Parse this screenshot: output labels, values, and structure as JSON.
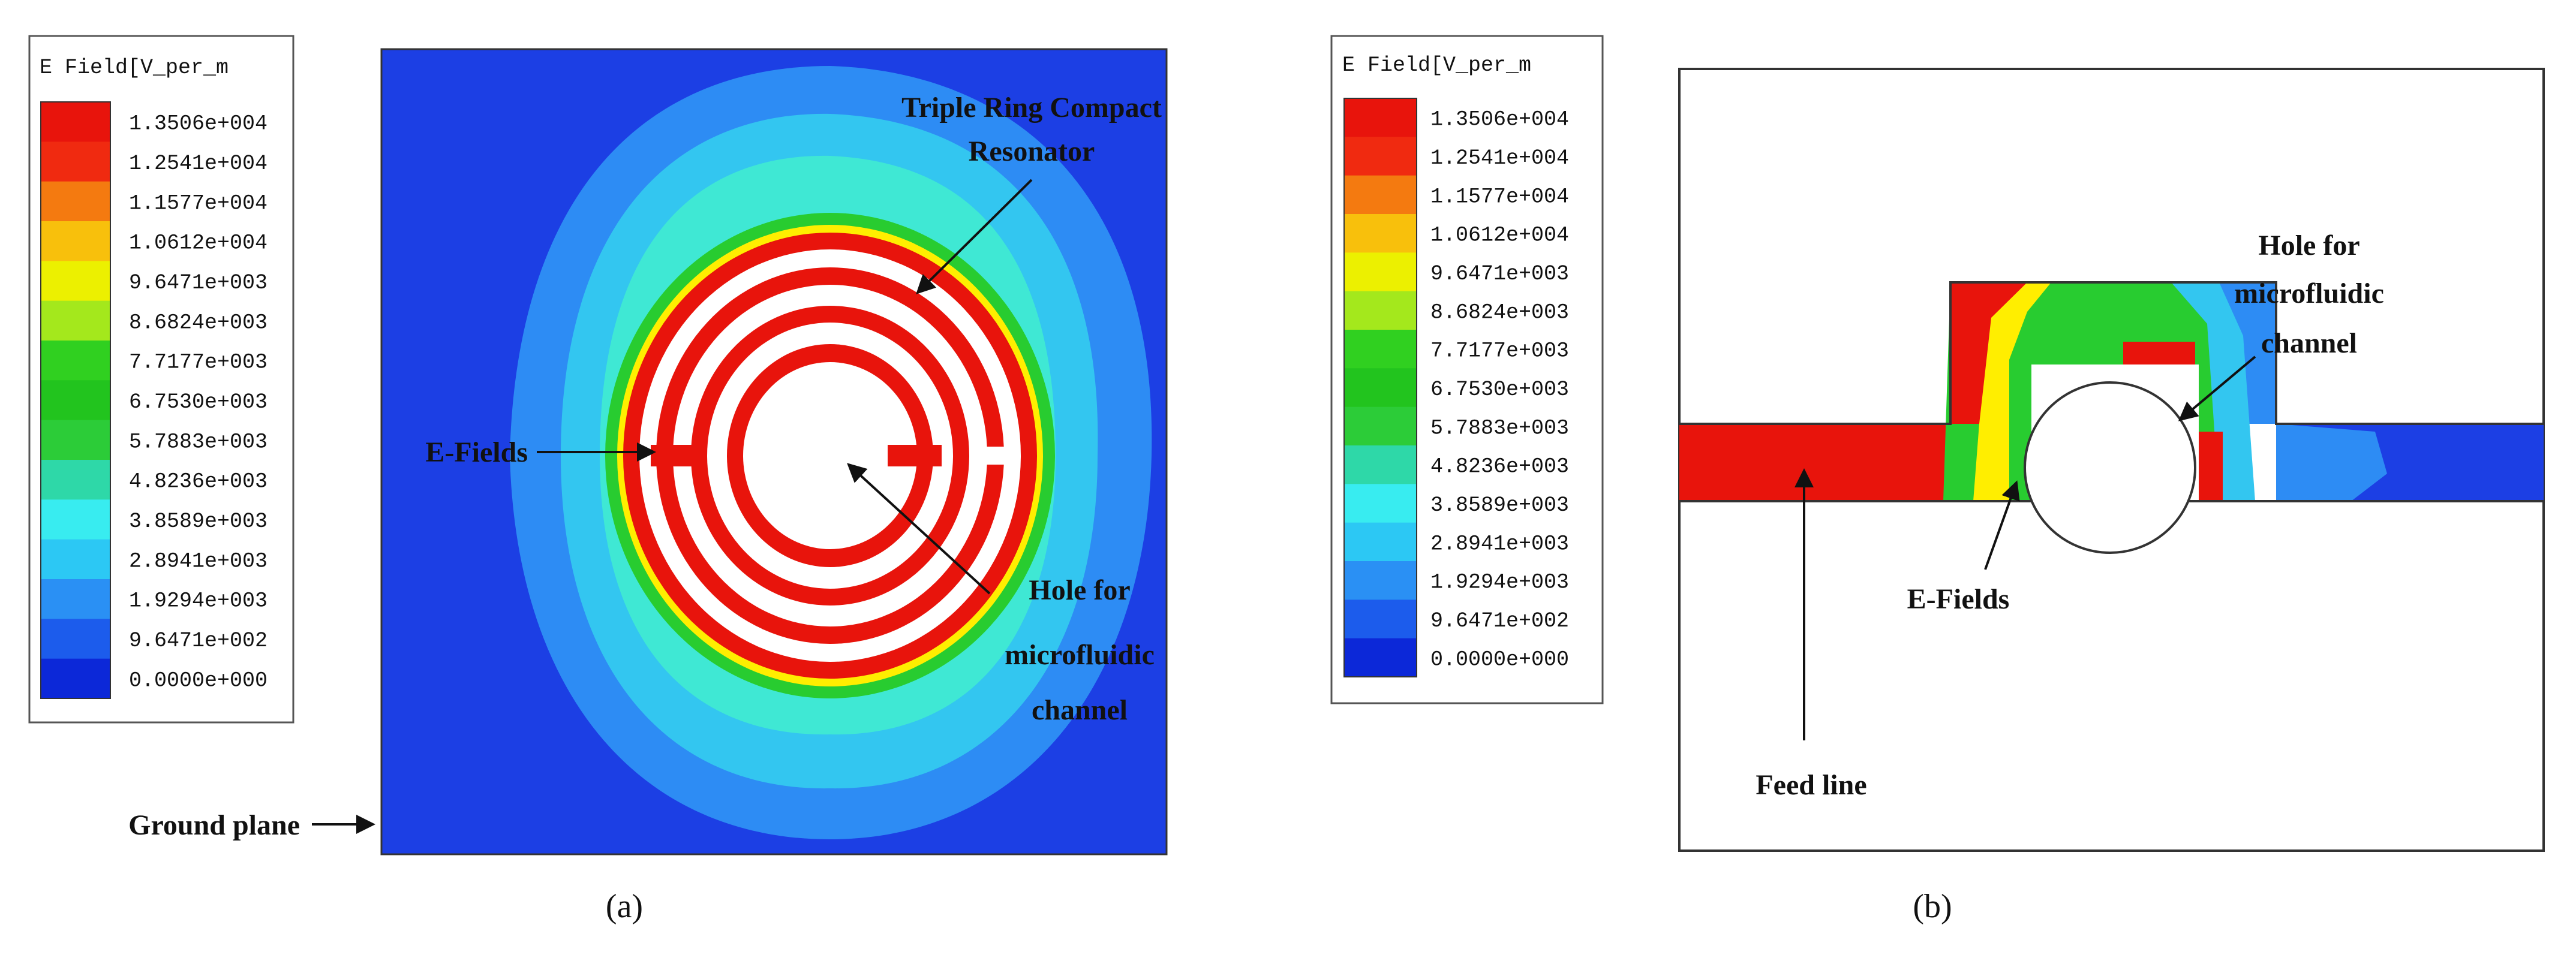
{
  "legend_a": {
    "title": "E Field[V_per_m",
    "labels": [
      "1.3506e+004",
      "1.2541e+004",
      "1.1577e+004",
      "1.0612e+004",
      "9.6471e+003",
      "8.6824e+003",
      "7.7177e+003",
      "6.7530e+003",
      "5.7883e+003",
      "4.8236e+003",
      "3.8589e+003",
      "2.8941e+003",
      "1.9294e+003",
      "9.6471e+002",
      "0.0000e+000"
    ]
  },
  "legend_b": {
    "title": "E Field[V_per_m",
    "labels": [
      "1.3506e+004",
      "1.2541e+004",
      "1.1577e+004",
      "1.0612e+004",
      "9.6471e+003",
      "8.6824e+003",
      "7.7177e+003",
      "6.7530e+003",
      "5.7883e+003",
      "4.8236e+003",
      "3.8589e+003",
      "2.8941e+003",
      "1.9294e+003",
      "9.6471e+002",
      "0.0000e+000"
    ]
  },
  "panel_a": {
    "resonator_label": [
      "Triple  Ring Compact",
      "Resonator"
    ],
    "efields_label": "E-Fields",
    "hole_label": [
      "Hole for",
      "microfluidic",
      "channel"
    ],
    "ground_label": "Ground plane",
    "caption": "(a)"
  },
  "panel_b": {
    "hole_label": [
      "Hole for",
      "microfluidic",
      "channel"
    ],
    "efields_label": "E-Fields",
    "feed_label": "Feed line",
    "caption": "(b)"
  }
}
